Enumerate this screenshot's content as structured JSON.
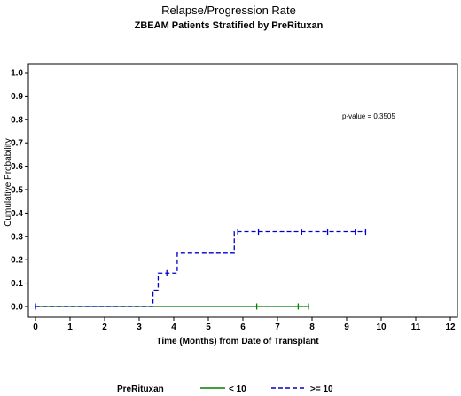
{
  "chart_data": {
    "type": "line",
    "title": "Relapse/Progression Rate",
    "subtitle": "ZBEAM Patients Stratified by PreRituxan",
    "xlabel": "Time (Months) from Date of Transplant",
    "ylabel": "Cumulative Probability",
    "xlim": [
      0,
      12
    ],
    "ylim": [
      0,
      1
    ],
    "x_ticks": [
      "0",
      "1",
      "2",
      "3",
      "4",
      "5",
      "6",
      "7",
      "8",
      "9",
      "10",
      "11",
      "12"
    ],
    "y_ticks": [
      "0.0",
      "0.1",
      "0.2",
      "0.3",
      "0.4",
      "0.5",
      "0.6",
      "0.7",
      "0.8",
      "0.9",
      "1.0"
    ],
    "annotation": "p-value = 0.3505",
    "legend": {
      "title": "PreRituxan",
      "placement": "bottom",
      "entries": [
        "< 10",
        ">= 10"
      ]
    },
    "series": [
      {
        "name": "< 10",
        "color": "#008000",
        "dash": "solid",
        "x": [
          0,
          7.9
        ],
        "y": [
          0,
          0
        ],
        "censored": [
          6.4,
          7.6,
          7.9
        ]
      },
      {
        "name": ">= 10",
        "color": "#0000cc",
        "dash": "dashed",
        "x": [
          0,
          3.4,
          3.55,
          4.1,
          5.75,
          9.55
        ],
        "y": [
          0,
          0.07,
          0.143,
          0.228,
          0.32,
          0.32
        ],
        "censored": [
          0,
          3.8,
          5.85,
          6.45,
          7.7,
          8.45,
          9.25,
          9.55
        ]
      }
    ]
  }
}
